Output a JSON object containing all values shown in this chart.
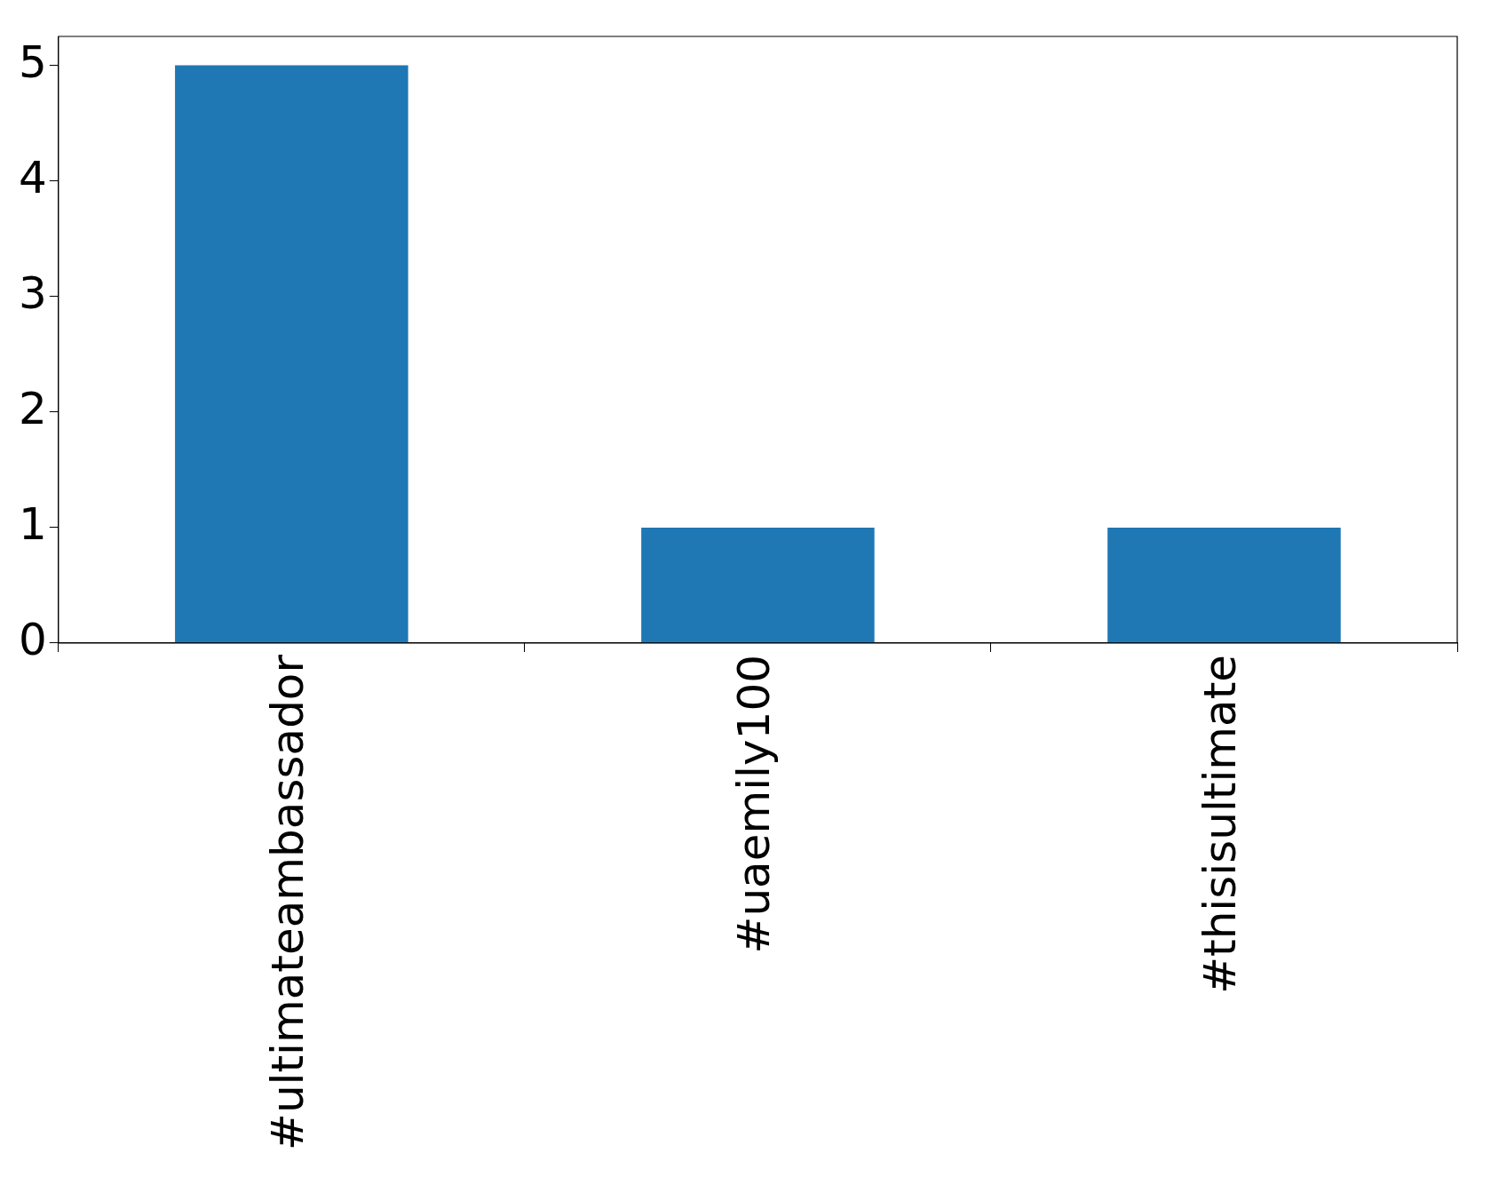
{
  "chart_data": {
    "type": "bar",
    "categories": [
      "#ultimateambassador",
      "#uaemily100",
      "#thisisultimate"
    ],
    "values": [
      5,
      1,
      1
    ],
    "color": "#1f77b4",
    "ylim": [
      0,
      5.25
    ],
    "yticks": [
      0,
      1,
      2,
      3,
      4,
      5
    ],
    "grid": false,
    "legend": false
  }
}
